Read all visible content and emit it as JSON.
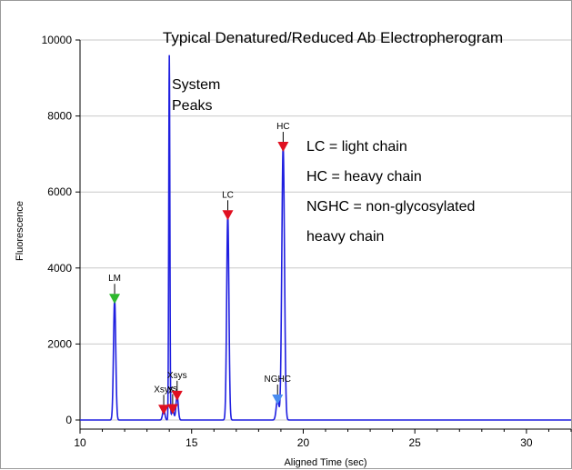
{
  "chart_data": {
    "type": "line",
    "title": "Typical Denatured/Reduced Ab Electropherogram",
    "xlabel": "Aligned Time (sec)",
    "ylabel": "Fluorescence",
    "xlim": [
      10,
      32
    ],
    "ylim": [
      -200,
      10000
    ],
    "x_ticks": [
      10,
      15,
      20,
      25,
      30
    ],
    "y_ticks": [
      0,
      2000,
      4000,
      6000,
      8000,
      10000
    ],
    "grid": "horizontal",
    "line_color": "#1f1fe0",
    "baseline": 0,
    "peaks": [
      {
        "label": "LM",
        "x": 11.55,
        "height": 3200,
        "width": 0.05,
        "marker_color": "#2db82d"
      },
      {
        "label": "Xsys",
        "x": 13.75,
        "height": 280,
        "width": 0.05,
        "marker_color": "#e01020"
      },
      {
        "label": "",
        "x": 14.0,
        "height": 9600,
        "width": 0.025,
        "marker_color": ""
      },
      {
        "label": "ys",
        "x": 14.15,
        "height": 300,
        "width": 0.05,
        "marker_color": "#e01020"
      },
      {
        "label": "Xsys",
        "x": 14.35,
        "height": 650,
        "width": 0.05,
        "marker_color": "#e01020"
      },
      {
        "label": "LC",
        "x": 16.62,
        "height": 5400,
        "width": 0.05,
        "marker_color": "#e01020"
      },
      {
        "label": "NGHC",
        "x": 18.85,
        "height": 550,
        "width": 0.06,
        "marker_color": "#4a8cf0"
      },
      {
        "label": "HC",
        "x": 19.1,
        "height": 7200,
        "width": 0.06,
        "marker_color": "#e01020"
      }
    ],
    "annotations": {
      "system_peaks": [
        "System",
        "Peaks"
      ],
      "legend": [
        "LC = light chain",
        "HC = heavy chain",
        "NGHC = non-glycosylated",
        "heavy chain"
      ]
    }
  }
}
